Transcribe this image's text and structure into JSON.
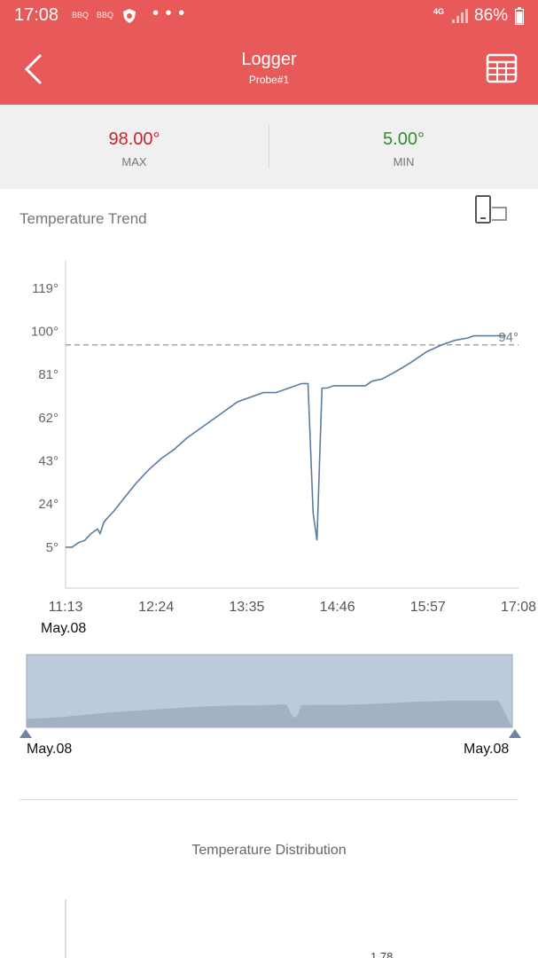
{
  "status_bar": {
    "time": "17:08",
    "app_icons": [
      "BBQ",
      "BBQ"
    ],
    "more": "• • •",
    "network": "4G",
    "battery": "86%"
  },
  "header": {
    "title": "Logger",
    "subtitle": "Probe#1",
    "back_icon": "chevron-left-icon",
    "table_icon": "table-grid-icon"
  },
  "stats": {
    "max_value": "98.00°",
    "max_label": "MAX",
    "min_value": "5.00°",
    "min_label": "MIN"
  },
  "trend": {
    "title": "Temperature Trend",
    "rotate_icon": "rotate-screen-icon",
    "start_date": "May.08"
  },
  "overview": {
    "start_label": "May.08",
    "end_label": "May.08"
  },
  "distribution": {
    "title": "Temperature Distribution",
    "partial_label": "1.78"
  },
  "colors": {
    "accent": "#e85a5a",
    "max": "#c8252a",
    "min": "#2f8f2f",
    "line": "#5a7ba0"
  },
  "chart_data": {
    "type": "line",
    "x_ticks": [
      "11:13",
      "12:24",
      "13:35",
      "14:46",
      "15:57",
      "17:08"
    ],
    "y_ticks": [
      "5°",
      "24°",
      "43°",
      "62°",
      "81°",
      "100°",
      "119°"
    ],
    "ylim": [
      -13,
      131
    ],
    "xlim": [
      0,
      355
    ],
    "reference_line": {
      "value": 94,
      "label": "94°"
    },
    "series": [
      {
        "x": [
          0,
          5,
          10,
          15,
          20,
          25,
          27,
          30,
          33,
          38,
          45,
          55,
          65,
          75,
          85,
          95,
          105,
          115,
          125,
          135,
          145,
          155,
          165,
          175,
          185,
          190,
          194,
          197,
          201,
          205,
          210,
          215,
          225,
          235,
          240,
          248,
          258,
          270,
          283,
          295,
          305,
          315,
          320,
          325,
          330,
          337,
          345
        ],
        "y": [
          5,
          5,
          7,
          8,
          11,
          13,
          11,
          16,
          18,
          21,
          26,
          33,
          39,
          44,
          48,
          53,
          57,
          61,
          65,
          69,
          71,
          73,
          73,
          75,
          77,
          77,
          20,
          8,
          75,
          75,
          76,
          76,
          76,
          76,
          78,
          79,
          82,
          86,
          91,
          94,
          96,
          97,
          98,
          98,
          98,
          98,
          98
        ]
      }
    ]
  }
}
